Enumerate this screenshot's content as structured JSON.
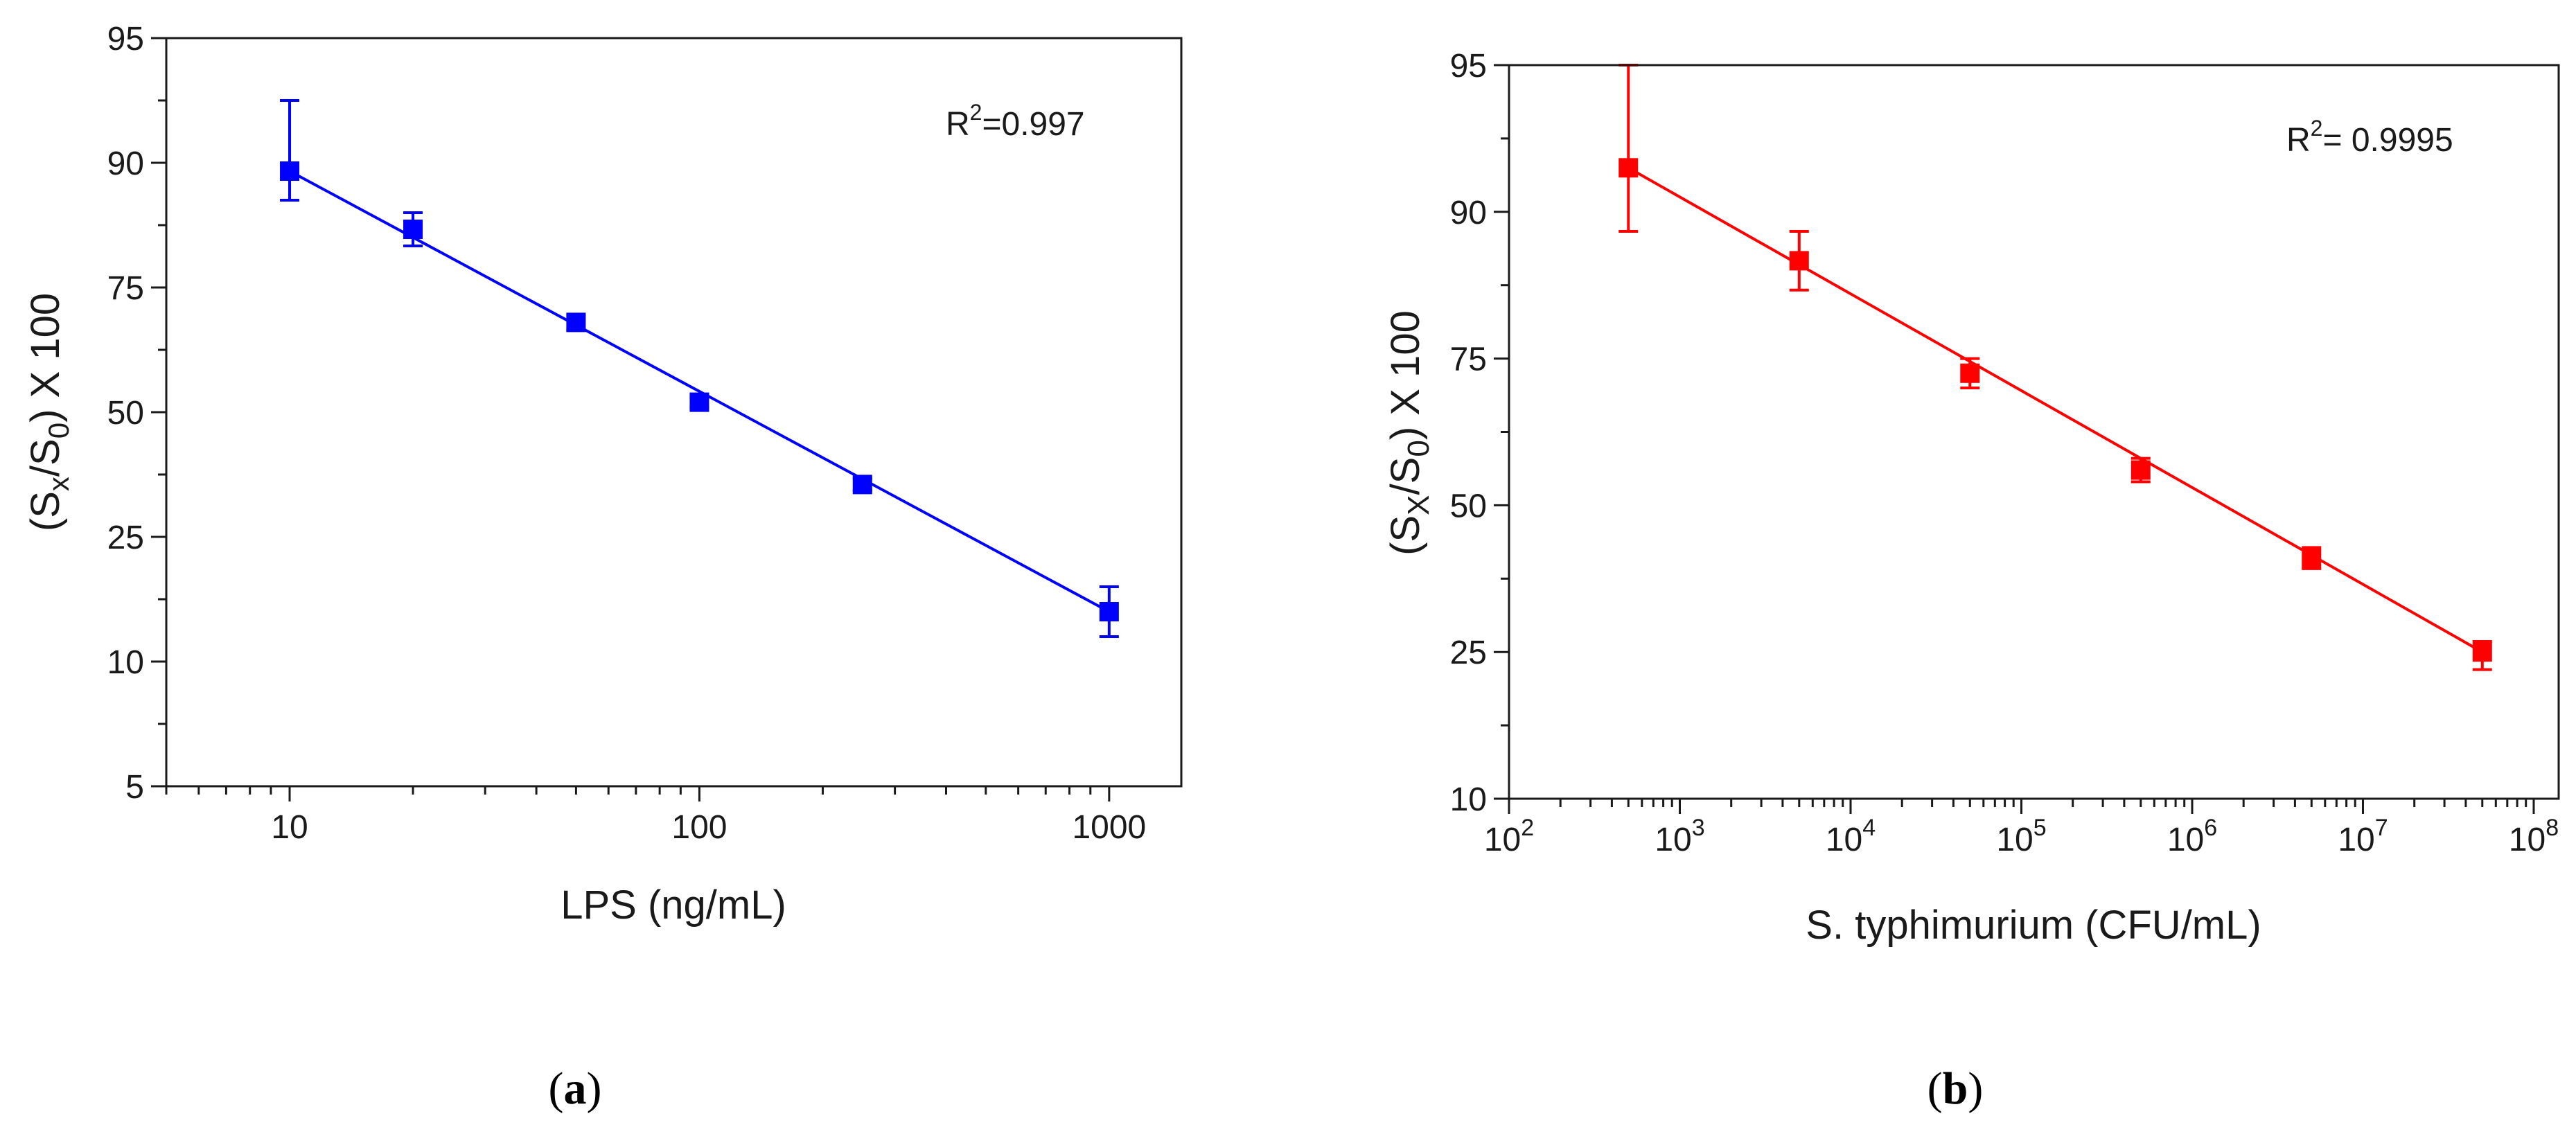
{
  "chart_data": [
    {
      "type": "scatter",
      "panel_label": "a",
      "title": "",
      "xlabel": "LPS (ng/mL)",
      "ylabel_prefix": "(S",
      "ylabel_sub1": "x",
      "ylabel_mid": "/S",
      "ylabel_sub2": "0",
      "ylabel_suffix": ") X 100",
      "x_scale": "log",
      "xlim": [
        5,
        1500
      ],
      "ylim": [
        5,
        95
      ],
      "x_ticks": [
        10,
        100,
        1000
      ],
      "x_tick_labels": [
        "10",
        "100",
        "1000"
      ],
      "y_ticks": [
        5,
        10,
        25,
        50,
        75,
        90,
        95
      ],
      "y_tick_labels": [
        "5",
        "10",
        "25",
        "50",
        "75",
        "90",
        "95"
      ],
      "annotation_main": "R",
      "annotation_sup": "2",
      "annotation_rest": "=0.997",
      "color": "#0000ff",
      "series": [
        {
          "name": "LPS",
          "x": [
            10,
            20,
            50,
            100,
            250,
            1000
          ],
          "y": [
            89,
            82,
            68,
            52,
            35.5,
            16
          ],
          "err": [
            3.5,
            2.0,
            1.5,
            1.0,
            1.2,
            3.0
          ]
        }
      ],
      "fit": {
        "x": [
          10,
          1000
        ],
        "y": [
          89,
          16
        ]
      }
    },
    {
      "type": "scatter",
      "panel_label": "b",
      "title": "",
      "xlabel": "S. typhimurium (CFU/mL)",
      "ylabel_prefix": "(S",
      "ylabel_sub1": "X",
      "ylabel_mid": "/S",
      "ylabel_sub2": "0",
      "ylabel_suffix": ") X 100",
      "x_scale": "log",
      "xlim": [
        100,
        140000000
      ],
      "ylim": [
        10,
        95
      ],
      "x_ticks": [
        100,
        1000,
        10000,
        100000,
        1000000,
        10000000,
        100000000
      ],
      "x_tick_base": "10",
      "x_tick_exponents": [
        "2",
        "3",
        "4",
        "5",
        "6",
        "7",
        "8"
      ],
      "y_ticks": [
        10,
        25,
        50,
        75,
        90,
        95
      ],
      "y_tick_labels": [
        "10",
        "25",
        "50",
        "75",
        "90",
        "95"
      ],
      "annotation_main": "R",
      "annotation_sup": "2",
      "annotation_rest": "= 0.9995",
      "color": "#ff0000",
      "series": [
        {
          "name": "S. typhimurium",
          "x": [
            500,
            5000,
            50000,
            500000,
            5000000,
            50000000
          ],
          "y": [
            91.5,
            85,
            72.5,
            56,
            41,
            25
          ],
          "err": [
            3.5,
            3.0,
            2.5,
            2.0,
            1.8,
            1.8
          ]
        }
      ],
      "fit": {
        "x": [
          500,
          50000000
        ],
        "y": [
          91.5,
          25
        ]
      }
    }
  ]
}
